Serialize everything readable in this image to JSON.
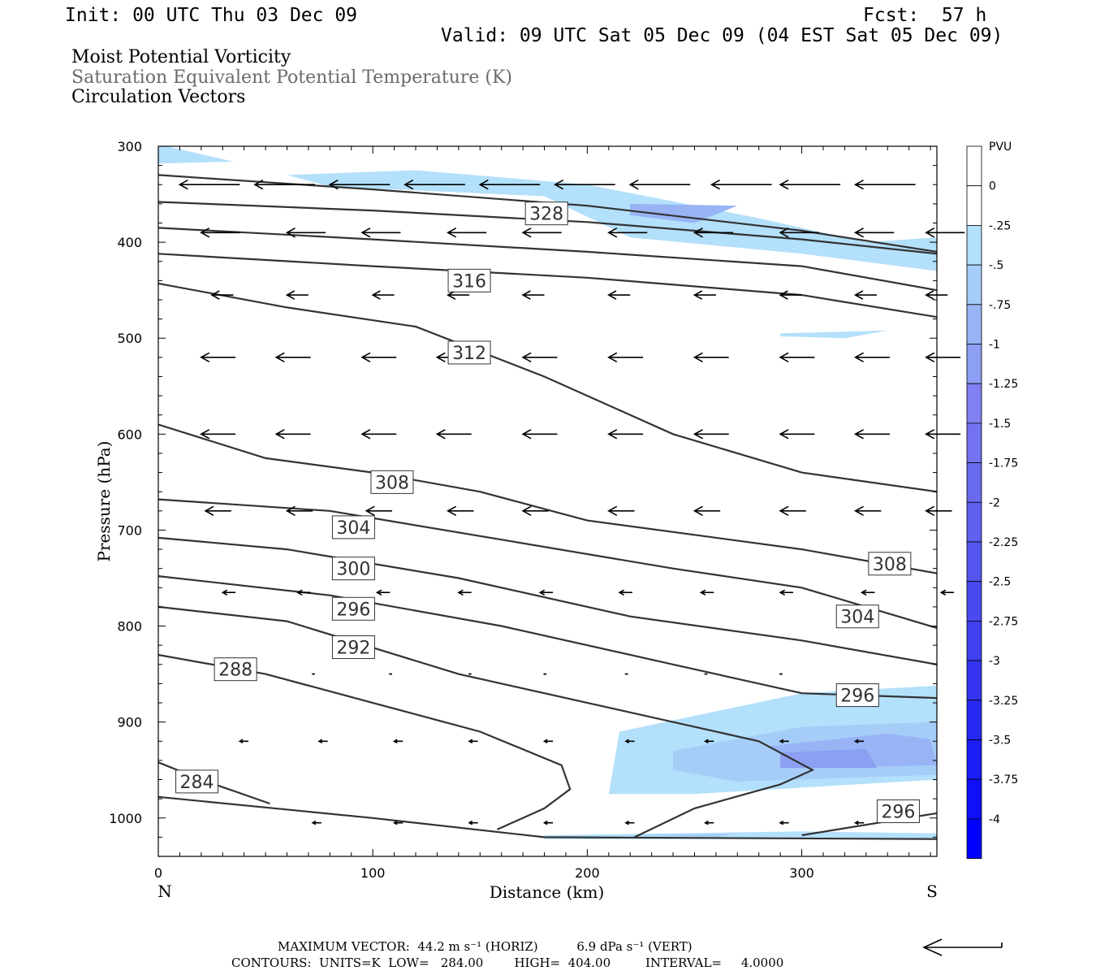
{
  "header": {
    "init": "Init: 00 UTC Thu 03 Dec 09",
    "fcst": "Fcst:  57 h",
    "valid": "Valid: 09 UTC Sat 05 Dec 09 (04 EST Sat 05 Dec 09)"
  },
  "titles": {
    "line1": "Moist Potential Vorticity",
    "line2": "Saturation Equivalent Potential Temperature (K)",
    "line3": "Circulation Vectors"
  },
  "footer": {
    "max_vector": "MAXIMUM VECTOR:  44.2 m s⁻¹ (HORIZ)          6.9 dPa s⁻¹ (VERT)",
    "contours": "CONTOURS:  UNITS=K  LOW=   284.00        HIGH=  404.00         INTERVAL=     4.0000"
  },
  "colors": {
    "contour": "#333333",
    "shade_1": "#b3e0fb",
    "shade_2": "#a6cdf8",
    "shade_3": "#98b4f5",
    "shade_4": "#8c9ff3"
  },
  "chart_data": {
    "type": "contour",
    "xlabel": "Distance (km)",
    "ylabel": "Pressure (hPa)",
    "xlim": [
      0,
      363
    ],
    "ylim": [
      1040,
      300
    ],
    "x_ticks": [
      0,
      100,
      200,
      300
    ],
    "y_ticks": [
      300,
      400,
      500,
      600,
      700,
      800,
      900,
      1000
    ],
    "x_end_labels": {
      "left": "N",
      "right": "S"
    },
    "contour_labels": [
      {
        "value": "328",
        "x": 181,
        "p": 370
      },
      {
        "value": "316",
        "x": 145,
        "p": 440
      },
      {
        "value": "312",
        "x": 145,
        "p": 515
      },
      {
        "value": "308",
        "x": 109,
        "p": 650
      },
      {
        "value": "304",
        "x": 91,
        "p": 697
      },
      {
        "value": "300",
        "x": 91,
        "p": 740
      },
      {
        "value": "296",
        "x": 91,
        "p": 782
      },
      {
        "value": "292",
        "x": 91,
        "p": 822
      },
      {
        "value": "288",
        "x": 36,
        "p": 845
      },
      {
        "value": "284",
        "x": 18,
        "p": 962
      },
      {
        "value": "308",
        "x": 341,
        "p": 735
      },
      {
        "value": "304",
        "x": 326,
        "p": 790
      },
      {
        "value": "296",
        "x": 326,
        "p": 872
      },
      {
        "value": "296",
        "x": 345,
        "p": 993
      }
    ],
    "contours": [
      [
        [
          0,
          330
        ],
        [
          100,
          345
        ],
        [
          200,
          362
        ],
        [
          300,
          388
        ],
        [
          363,
          410
        ]
      ],
      [
        [
          0,
          358
        ],
        [
          100,
          367
        ],
        [
          200,
          379
        ],
        [
          300,
          397
        ],
        [
          363,
          412
        ]
      ],
      [
        [
          0,
          385
        ],
        [
          100,
          397
        ],
        [
          200,
          410
        ],
        [
          300,
          425
        ],
        [
          363,
          450
        ]
      ],
      [
        [
          0,
          412
        ],
        [
          100,
          425
        ],
        [
          200,
          437
        ],
        [
          300,
          455
        ],
        [
          363,
          478
        ]
      ],
      [
        [
          0,
          443
        ],
        [
          60,
          468
        ],
        [
          120,
          488
        ],
        [
          180,
          540
        ],
        [
          240,
          600
        ],
        [
          300,
          640
        ],
        [
          363,
          660
        ]
      ],
      [
        [
          0,
          590
        ],
        [
          50,
          625
        ],
        [
          100,
          640
        ],
        [
          150,
          660
        ],
        [
          200,
          690
        ],
        [
          250,
          705
        ],
        [
          300,
          720
        ],
        [
          363,
          745
        ]
      ],
      [
        [
          0,
          668
        ],
        [
          80,
          680
        ],
        [
          160,
          710
        ],
        [
          240,
          740
        ],
        [
          300,
          760
        ],
        [
          363,
          802
        ]
      ],
      [
        [
          0,
          708
        ],
        [
          60,
          720
        ],
        [
          140,
          750
        ],
        [
          220,
          790
        ],
        [
          300,
          815
        ],
        [
          363,
          840
        ]
      ],
      [
        [
          0,
          748
        ],
        [
          80,
          768
        ],
        [
          160,
          800
        ],
        [
          240,
          840
        ],
        [
          300,
          870
        ],
        [
          363,
          875
        ]
      ],
      [
        [
          0,
          780
        ],
        [
          60,
          795
        ],
        [
          140,
          850
        ],
        [
          220,
          890
        ],
        [
          280,
          920
        ],
        [
          305,
          950
        ],
        [
          290,
          965
        ],
        [
          250,
          990
        ],
        [
          222,
          1020
        ]
      ],
      [
        [
          0,
          830
        ],
        [
          50,
          850
        ],
        [
          100,
          880
        ],
        [
          150,
          910
        ],
        [
          188,
          945
        ],
        [
          192,
          970
        ],
        [
          180,
          990
        ],
        [
          158,
          1012
        ]
      ],
      [
        [
          0,
          942
        ],
        [
          20,
          960
        ],
        [
          52,
          985
        ]
      ],
      [
        [
          0,
          978
        ],
        [
          100,
          1000
        ],
        [
          180,
          1020
        ],
        [
          363,
          1022
        ]
      ],
      [
        [
          300,
          1018
        ],
        [
          363,
          995
        ]
      ]
    ],
    "mpv_shading": [
      {
        "level": -0.25,
        "regions": [
          [
            [
              0,
              298
            ],
            [
              35,
              316
            ],
            [
              0,
              318
            ]
          ],
          [
            [
              60,
              330
            ],
            [
              120,
              325
            ],
            [
              200,
              340
            ],
            [
              280,
              375
            ],
            [
              330,
              400
            ],
            [
              363,
              395
            ],
            [
              363,
              430
            ],
            [
              300,
              412
            ],
            [
              220,
              395
            ],
            [
              180,
              352
            ],
            [
              80,
              342
            ]
          ],
          [
            [
              215,
              910
            ],
            [
              300,
              870
            ],
            [
              363,
              862
            ],
            [
              363,
              960
            ],
            [
              250,
              975
            ],
            [
              210,
              975
            ]
          ],
          [
            [
              180,
              1018
            ],
            [
              300,
              1014
            ],
            [
              363,
              1016
            ],
            [
              363,
              1022
            ],
            [
              180,
              1022
            ]
          ],
          [
            [
              290,
              495
            ],
            [
              340,
              492
            ],
            [
              320,
              500
            ],
            [
              290,
              498
            ]
          ]
        ]
      },
      {
        "level": -0.5,
        "regions": [
          [
            [
              220,
              1018
            ],
            [
              270,
              1016
            ],
            [
              260,
              1020
            ]
          ],
          [
            [
              240,
              930
            ],
            [
              300,
              905
            ],
            [
              363,
              900
            ],
            [
              363,
              955
            ],
            [
              270,
              962
            ],
            [
              240,
              950
            ]
          ]
        ]
      },
      {
        "level": -0.75,
        "regions": [
          [
            [
              220,
              360
            ],
            [
              270,
              362
            ],
            [
              250,
              380
            ],
            [
              220,
              372
            ]
          ],
          [
            [
              285,
              925
            ],
            [
              340,
              912
            ],
            [
              360,
              918
            ],
            [
              363,
              945
            ],
            [
              300,
              948
            ]
          ]
        ]
      },
      {
        "level": -1.0,
        "regions": [
          [
            [
              290,
              932
            ],
            [
              330,
              928
            ],
            [
              335,
              948
            ],
            [
              290,
              948
            ]
          ]
        ]
      }
    ],
    "vectors": [
      {
        "p": 340,
        "x": [
          10,
          45,
          80,
          115,
          150,
          185,
          220,
          258,
          290,
          325
        ],
        "len": 28
      },
      {
        "p": 390,
        "x": [
          20,
          60,
          95,
          135,
          170,
          210,
          250,
          290,
          325,
          358
        ],
        "len": 18
      },
      {
        "p": 455,
        "x": [
          25,
          60,
          100,
          135,
          170,
          210,
          250,
          290,
          325,
          358
        ],
        "len": 10
      },
      {
        "p": 520,
        "x": [
          20,
          55,
          95,
          130,
          170,
          210,
          250,
          290,
          325,
          358
        ],
        "len": 16
      },
      {
        "p": 600,
        "x": [
          20,
          55,
          95,
          130,
          170,
          210,
          250,
          290,
          325,
          358
        ],
        "len": 16
      },
      {
        "p": 680,
        "x": [
          22,
          60,
          97,
          135,
          170,
          210,
          250,
          290,
          325,
          358
        ],
        "len": 12
      },
      {
        "p": 765,
        "x": [
          30,
          65,
          102,
          140,
          178,
          215,
          253,
          290,
          328,
          365
        ],
        "len": 6
      },
      {
        "p": 850,
        "x": [
          72,
          108,
          145,
          180,
          218,
          255,
          290
        ],
        "len": 1
      },
      {
        "p": 920,
        "x": [
          38,
          75,
          110,
          145,
          180,
          218,
          255,
          290,
          325
        ],
        "len": 4
      },
      {
        "p": 1005,
        "x": [
          72,
          110,
          145,
          180,
          218,
          255,
          290,
          325
        ],
        "len": 4
      }
    ],
    "colorbar": {
      "label": "PVU",
      "ticks": [
        "0",
        "-.25",
        "-.5",
        "-.75",
        "-1",
        "-1.25",
        "-1.5",
        "-1.75",
        "-2",
        "-2.25",
        "-2.5",
        "-2.75",
        "-3",
        "-3.25",
        "-3.5",
        "-3.75",
        "-4"
      ],
      "colors": [
        "#ffffff",
        "#ffffff",
        "#b3e0fb",
        "#a6cdf8",
        "#98b4f5",
        "#8c9ff3",
        "#8080f2",
        "#7373f1",
        "#6a6aef",
        "#5f5ff0",
        "#5555ef",
        "#4a4aef",
        "#4040f0",
        "#3535f1",
        "#2828f3",
        "#1c1cf6",
        "#0f0ff9",
        "#0000ff"
      ]
    }
  }
}
